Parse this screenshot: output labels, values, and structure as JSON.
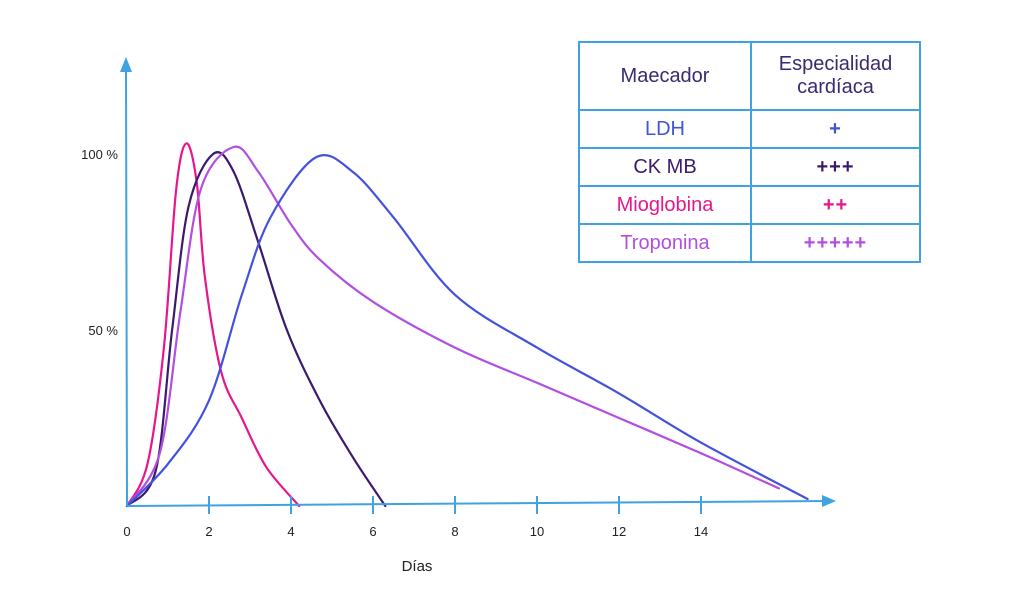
{
  "chart_data": {
    "type": "line",
    "xlabel": "Días",
    "ylabel": "",
    "xlim": [
      0,
      17
    ],
    "ylim": [
      0,
      110
    ],
    "x_ticks": [
      0,
      2,
      4,
      6,
      8,
      10,
      12,
      14
    ],
    "y_ticks": [
      {
        "value": 100,
        "label": "100 %"
      },
      {
        "value": 50,
        "label": "50 %"
      }
    ],
    "grid": false,
    "series": [
      {
        "name": "Mioglobina",
        "color": "#e6178d",
        "points": [
          [
            0,
            0
          ],
          [
            0.5,
            12
          ],
          [
            0.9,
            45
          ],
          [
            1.2,
            90
          ],
          [
            1.45,
            103
          ],
          [
            1.7,
            92
          ],
          [
            1.9,
            65
          ],
          [
            2.3,
            38
          ],
          [
            2.8,
            25
          ],
          [
            3.4,
            11
          ],
          [
            4.2,
            0
          ]
        ]
      },
      {
        "name": "CK MB",
        "color": "#3b1a6e",
        "points": [
          [
            0,
            0
          ],
          [
            0.7,
            10
          ],
          [
            1.1,
            50
          ],
          [
            1.5,
            85
          ],
          [
            2.1,
            100
          ],
          [
            2.6,
            95
          ],
          [
            3.2,
            75
          ],
          [
            3.9,
            50
          ],
          [
            4.7,
            30
          ],
          [
            5.5,
            14
          ],
          [
            6.3,
            0
          ]
        ]
      },
      {
        "name": "Troponina",
        "color": "#b24fe0",
        "points": [
          [
            0,
            0
          ],
          [
            0.8,
            15
          ],
          [
            1.3,
            55
          ],
          [
            1.8,
            90
          ],
          [
            2.6,
            102
          ],
          [
            3.2,
            95
          ],
          [
            4.0,
            80
          ],
          [
            4.7,
            70
          ],
          [
            6.0,
            58
          ],
          [
            8.0,
            45
          ],
          [
            10.0,
            35
          ],
          [
            12.0,
            25
          ],
          [
            14.0,
            15
          ],
          [
            15.9,
            5
          ]
        ]
      },
      {
        "name": "LDH",
        "color": "#4352dc",
        "points": [
          [
            0,
            0
          ],
          [
            1,
            12
          ],
          [
            2,
            30
          ],
          [
            2.8,
            60
          ],
          [
            3.5,
            82
          ],
          [
            4.6,
            99
          ],
          [
            5.5,
            95
          ],
          [
            6.5,
            82
          ],
          [
            8,
            60
          ],
          [
            10,
            45
          ],
          [
            12,
            32
          ],
          [
            14,
            18
          ],
          [
            16.6,
            2
          ]
        ]
      }
    ]
  },
  "table": {
    "headers": [
      "Maecador",
      "Especialidad cardíaca"
    ],
    "rows": [
      {
        "marker": "LDH",
        "specificity": "+",
        "color": "#4352dc"
      },
      {
        "marker": "CK MB",
        "specificity": "+++",
        "color": "#3b1a6e"
      },
      {
        "marker": "Mioglobina",
        "specificity": "++",
        "color": "#e6178d"
      },
      {
        "marker": "Troponina",
        "specificity": "+++++",
        "color": "#b24fe0"
      }
    ]
  },
  "colors": {
    "axis": "#3ea3e0",
    "header_text": "#3b2a6e"
  }
}
